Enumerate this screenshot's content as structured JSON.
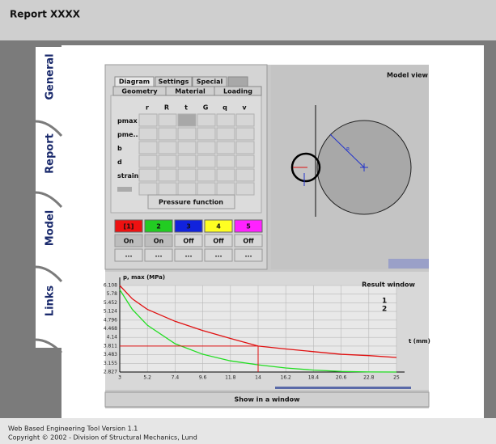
{
  "header": {
    "title": "Report XXXX"
  },
  "tabs": [
    "General",
    "Report",
    "Model",
    "Links"
  ],
  "panel": {
    "tabs_row1": [
      "Diagram",
      "Settings",
      "Special"
    ],
    "tabs_row2": [
      "Geometry",
      "Material",
      "Loading"
    ],
    "columns": [
      "r",
      "R",
      "t",
      "G",
      "q",
      "v"
    ],
    "rows": [
      "pmax",
      "pme...",
      "b",
      "d",
      "strain"
    ],
    "button": "Pressure function",
    "series_buttons": [
      "[1]",
      "2",
      "3",
      "4",
      "5"
    ],
    "states": [
      "On",
      "On",
      "Off",
      "Off",
      "Off"
    ],
    "more": [
      "...",
      "...",
      "...",
      "...",
      "..."
    ]
  },
  "model_view": {
    "title": "Model view",
    "label": "R"
  },
  "chart_data": {
    "type": "line",
    "title": "Result window",
    "y_label": "p, max (MPa)",
    "x_label": "t (mm)",
    "x": [
      3,
      4,
      5.2,
      7.4,
      9.6,
      11.8,
      14,
      16.2,
      18.4,
      20.6,
      22.8,
      25
    ],
    "series": [
      {
        "name": "1",
        "color": "#e01010",
        "values": [
          6.108,
          5.6,
          5.2,
          4.75,
          4.4,
          4.1,
          3.811,
          3.7,
          3.6,
          3.5,
          3.45,
          3.38
        ]
      },
      {
        "name": "2",
        "color": "#22dd22",
        "values": [
          5.95,
          5.2,
          4.6,
          3.9,
          3.5,
          3.25,
          3.1,
          2.98,
          2.9,
          2.85,
          2.83,
          2.827
        ]
      }
    ],
    "xlim": [
      3,
      25
    ],
    "ylim": [
      2.827,
      6.108
    ],
    "xticks": [
      3,
      5.2,
      7.4,
      9.6,
      11.8,
      14,
      16.2,
      18.4,
      20.6,
      22.8,
      25
    ],
    "yticks": [
      2.827,
      3.155,
      3.483,
      3.811,
      4.14,
      4.468,
      4.796,
      5.124,
      5.452,
      5.78,
      6.108
    ],
    "marker": {
      "x": 14,
      "y": 3.811,
      "color": "#e01010"
    },
    "grid": true
  },
  "button": "Show in a window",
  "footer": [
    "Web Based Engineering Tool Version 1.1",
    "Copyright © 2002 - Division of Structural Mechanics, Lund"
  ]
}
